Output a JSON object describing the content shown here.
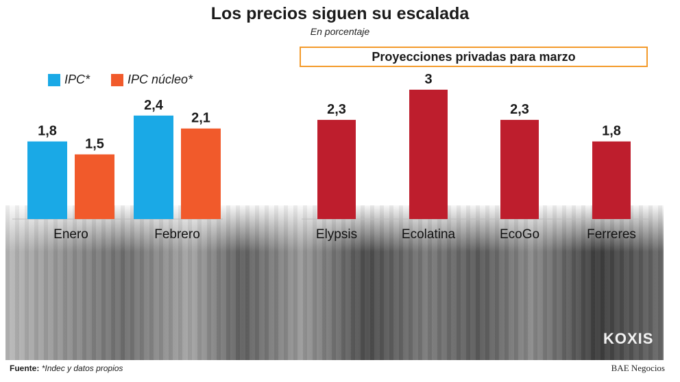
{
  "title": "Los precios siguen su escalada",
  "subtitle": "En porcentaje",
  "projections_label": "Proyecciones privadas para marzo",
  "legend": [
    {
      "label": "IPC*",
      "color": "#1aa9e6"
    },
    {
      "label": "IPC núcleo*",
      "color": "#f15a2b"
    }
  ],
  "footer": {
    "source_label": "Fuente:",
    "source_text": "*Indec y datos propios",
    "credit": "BAE Negocios"
  },
  "photo_sign": "KOXIS",
  "chart_data": [
    {
      "type": "bar",
      "categories": [
        "Enero",
        "Febrero"
      ],
      "series": [
        {
          "name": "IPC*",
          "color": "#1aa9e6",
          "values": [
            1.8,
            2.4
          ],
          "labels": [
            "1,8",
            "2,4"
          ]
        },
        {
          "name": "IPC núcleo*",
          "color": "#f15a2b",
          "values": [
            1.5,
            2.1
          ],
          "labels": [
            "1,5",
            "2,1"
          ]
        }
      ]
    },
    {
      "type": "bar",
      "title": "Proyecciones privadas para marzo",
      "categories": [
        "Elypsis",
        "Ecolatina",
        "EcoGo",
        "Ferreres"
      ],
      "series": [
        {
          "color": "#be1e2d",
          "values": [
            2.3,
            3,
            2.3,
            1.8
          ],
          "labels": [
            "2,3",
            "3",
            "2,3",
            "1,8"
          ]
        }
      ]
    }
  ]
}
